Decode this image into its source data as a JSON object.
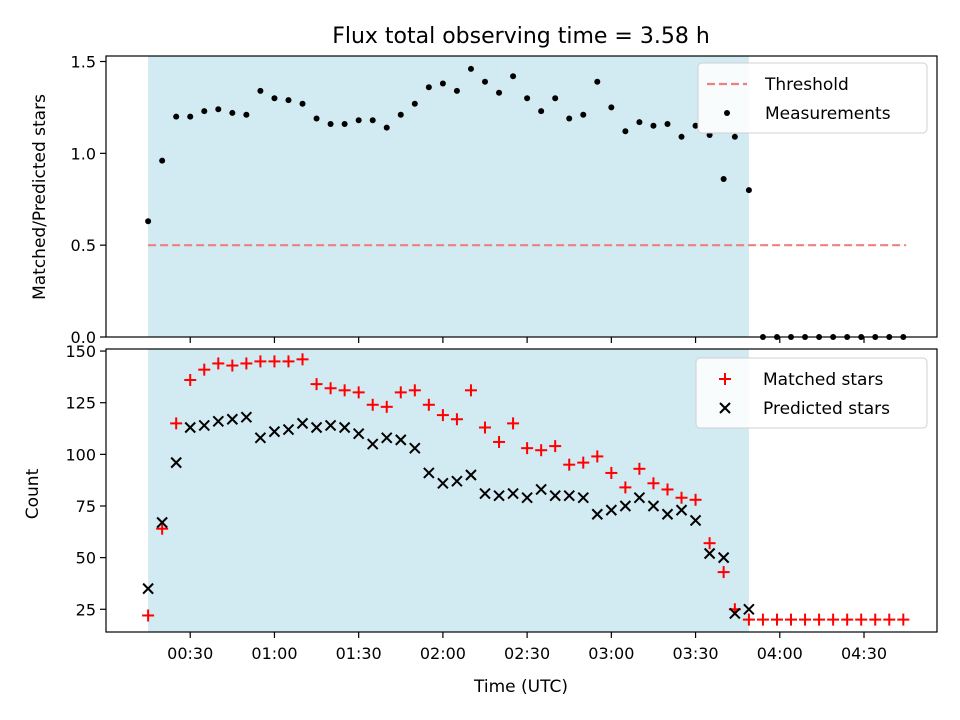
{
  "figure": {
    "title": "Flux total observing time = 3.58 h"
  },
  "chart_data": [
    {
      "type": "scatter",
      "panel": "top",
      "ylabel": "Matched/Predicted stars",
      "xlabel": "",
      "ylim": [
        0,
        1.53
      ],
      "yticks": [
        0.0,
        0.5,
        1.0,
        1.5
      ],
      "ytick_labels": [
        "0.0",
        "0.5",
        "1.0",
        "1.5"
      ],
      "grid": false,
      "legend_position": "upper right",
      "legend": [
        "Threshold",
        "Measurements"
      ],
      "threshold": {
        "name": "Threshold",
        "value": 0.5,
        "x_start": "00:15",
        "x_end": "04:45",
        "color": "#f08080"
      },
      "shaded_interval": {
        "x_start": "00:15",
        "x_end": "03:49",
        "color": "#add8e6"
      },
      "series": [
        {
          "name": "Measurements",
          "color": "#000000",
          "marker": "dot",
          "x": [
            "00:15",
            "00:20",
            "00:25",
            "00:30",
            "00:35",
            "00:40",
            "00:45",
            "00:50",
            "00:55",
            "01:00",
            "01:05",
            "01:10",
            "01:15",
            "01:20",
            "01:25",
            "01:30",
            "01:35",
            "01:40",
            "01:45",
            "01:50",
            "01:55",
            "02:00",
            "02:05",
            "02:10",
            "02:15",
            "02:20",
            "02:25",
            "02:30",
            "02:35",
            "02:40",
            "02:45",
            "02:50",
            "02:55",
            "03:00",
            "03:05",
            "03:10",
            "03:15",
            "03:20",
            "03:25",
            "03:30",
            "03:35",
            "03:40",
            "03:44",
            "03:49",
            "03:54",
            "03:59",
            "04:04",
            "04:09",
            "04:14",
            "04:19",
            "04:24",
            "04:29",
            "04:34",
            "04:39",
            "04:44"
          ],
          "y": [
            0.63,
            0.96,
            1.2,
            1.2,
            1.23,
            1.24,
            1.22,
            1.21,
            1.34,
            1.3,
            1.29,
            1.27,
            1.19,
            1.16,
            1.16,
            1.18,
            1.18,
            1.14,
            1.21,
            1.27,
            1.36,
            1.38,
            1.34,
            1.46,
            1.39,
            1.33,
            1.42,
            1.3,
            1.23,
            1.3,
            1.19,
            1.21,
            1.39,
            1.25,
            1.12,
            1.17,
            1.15,
            1.16,
            1.09,
            1.15,
            1.1,
            0.86,
            1.09,
            0.8,
            0,
            0,
            0,
            0,
            0,
            0,
            0,
            0,
            0,
            0,
            0
          ]
        }
      ]
    },
    {
      "type": "scatter",
      "panel": "bottom",
      "ylabel": "Count",
      "xlabel": "Time (UTC)",
      "ylim": [
        14,
        151
      ],
      "yticks": [
        25,
        50,
        75,
        100,
        125,
        150
      ],
      "ytick_labels": [
        "25",
        "50",
        "75",
        "100",
        "125",
        "150"
      ],
      "xticks": [
        "00:30",
        "01:00",
        "01:30",
        "02:00",
        "02:30",
        "03:00",
        "03:30",
        "04:00",
        "04:30"
      ],
      "grid": false,
      "legend_position": "upper right",
      "legend": [
        "Matched stars",
        "Predicted stars"
      ],
      "shaded_interval": {
        "x_start": "00:15",
        "x_end": "03:49",
        "color": "#add8e6"
      },
      "series": [
        {
          "name": "Matched stars",
          "color": "#ff0000",
          "marker": "+",
          "x": [
            "00:15",
            "00:20",
            "00:25",
            "00:30",
            "00:35",
            "00:40",
            "00:45",
            "00:50",
            "00:55",
            "01:00",
            "01:05",
            "01:10",
            "01:15",
            "01:20",
            "01:25",
            "01:30",
            "01:35",
            "01:40",
            "01:45",
            "01:50",
            "01:55",
            "02:00",
            "02:05",
            "02:10",
            "02:15",
            "02:20",
            "02:25",
            "02:30",
            "02:35",
            "02:40",
            "02:45",
            "02:50",
            "02:55",
            "03:00",
            "03:05",
            "03:10",
            "03:15",
            "03:20",
            "03:25",
            "03:30",
            "03:35",
            "03:40",
            "03:44",
            "03:49",
            "03:54",
            "03:59",
            "04:04",
            "04:09",
            "04:14",
            "04:19",
            "04:24",
            "04:29",
            "04:34",
            "04:39",
            "04:44"
          ],
          "y": [
            22,
            64,
            115,
            136,
            141,
            144,
            143,
            144,
            145,
            145,
            145,
            146,
            134,
            132,
            131,
            130,
            124,
            123,
            130,
            131,
            124,
            119,
            117,
            131,
            113,
            106,
            115,
            103,
            102,
            104,
            95,
            96,
            99,
            91,
            84,
            93,
            86,
            83,
            79,
            78,
            57,
            43,
            25,
            20,
            20,
            20,
            20,
            20,
            20,
            20,
            20,
            20,
            20,
            20,
            20
          ]
        },
        {
          "name": "Predicted stars",
          "color": "#000000",
          "marker": "x",
          "x": [
            "00:15",
            "00:20",
            "00:25",
            "00:30",
            "00:35",
            "00:40",
            "00:45",
            "00:50",
            "00:55",
            "01:00",
            "01:05",
            "01:10",
            "01:15",
            "01:20",
            "01:25",
            "01:30",
            "01:35",
            "01:40",
            "01:45",
            "01:50",
            "01:55",
            "02:00",
            "02:05",
            "02:10",
            "02:15",
            "02:20",
            "02:25",
            "02:30",
            "02:35",
            "02:40",
            "02:45",
            "02:50",
            "02:55",
            "03:00",
            "03:05",
            "03:10",
            "03:15",
            "03:20",
            "03:25",
            "03:30",
            "03:35",
            "03:40",
            "03:44",
            "03:49"
          ],
          "y": [
            35,
            67,
            96,
            113,
            114,
            116,
            117,
            118,
            108,
            111,
            112,
            115,
            113,
            114,
            113,
            110,
            105,
            108,
            107,
            103,
            91,
            86,
            87,
            90,
            81,
            80,
            81,
            79,
            83,
            80,
            80,
            79,
            71,
            73,
            75,
            79,
            75,
            71,
            73,
            68,
            52,
            50,
            23,
            25
          ]
        }
      ]
    }
  ]
}
